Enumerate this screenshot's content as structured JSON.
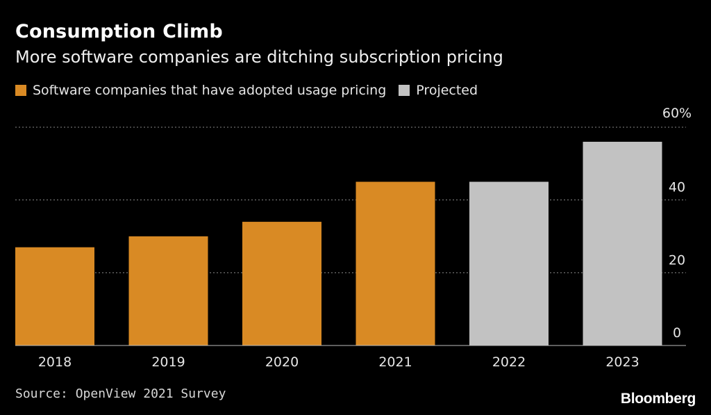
{
  "title": "Consumption Climb",
  "subtitle": "More software companies are ditching subscription pricing",
  "legend": [
    {
      "label": "Software companies that have adopted usage pricing",
      "color": "#d98a24"
    },
    {
      "label": "Projected",
      "color": "#c2c2c2"
    }
  ],
  "source": "Source: OpenView 2021 Survey",
  "brand": "Bloomberg",
  "chart_data": {
    "type": "bar",
    "title": "Consumption Climb",
    "subtitle": "More software companies are ditching subscription pricing",
    "categories": [
      "2018",
      "2019",
      "2020",
      "2021",
      "2022",
      "2023"
    ],
    "values": [
      27,
      30,
      34,
      45,
      45,
      56
    ],
    "bar_status": [
      "adopted",
      "adopted",
      "adopted",
      "adopted",
      "projected",
      "projected"
    ],
    "colors": {
      "adopted": "#d98a24",
      "projected": "#c2c2c2"
    },
    "y_ticks": [
      0,
      20,
      40,
      60
    ],
    "y_tick_labels": [
      "0",
      "20",
      "40",
      "60%"
    ],
    "ylim": [
      0,
      60
    ],
    "grid": true,
    "y_axis_side": "right",
    "xlabel": "",
    "ylabel": ""
  }
}
